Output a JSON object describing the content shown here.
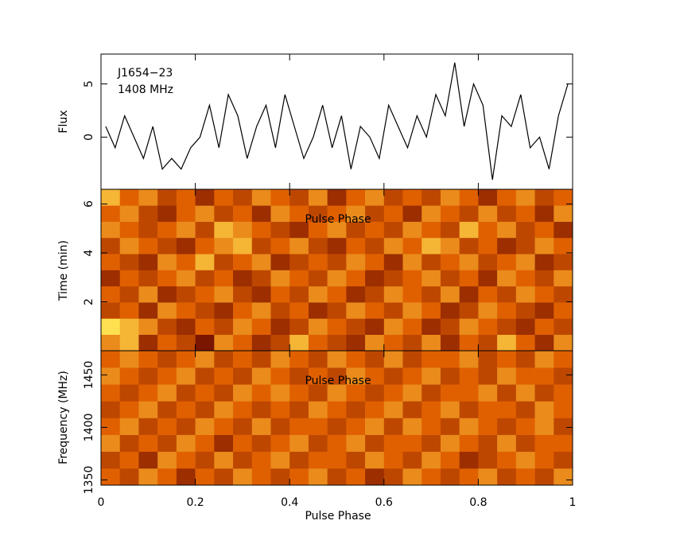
{
  "chart_data": [
    {
      "type": "line",
      "ylabel": "Flux",
      "annotations": [
        "J1654−23",
        "1408 MHz"
      ],
      "xlim": [
        0,
        1
      ],
      "ylim": [
        -4.9,
        7.8
      ],
      "yticks": [
        0,
        5
      ],
      "color": "#000000",
      "x": [
        0.01,
        0.03,
        0.05,
        0.07,
        0.09,
        0.11,
        0.13,
        0.15,
        0.17,
        0.19,
        0.21,
        0.23,
        0.25,
        0.27,
        0.29,
        0.31,
        0.33,
        0.35,
        0.37,
        0.39,
        0.41,
        0.43,
        0.45,
        0.47,
        0.49,
        0.51,
        0.53,
        0.55,
        0.57,
        0.59,
        0.61,
        0.63,
        0.65,
        0.67,
        0.69,
        0.71,
        0.73,
        0.75,
        0.77,
        0.79,
        0.81,
        0.83,
        0.85,
        0.87,
        0.89,
        0.91,
        0.93,
        0.95,
        0.97,
        0.99
      ],
      "values": [
        1,
        -1,
        2,
        0,
        -2,
        1,
        -3,
        -2,
        -3,
        -1,
        0,
        3,
        -1,
        4,
        2,
        -2,
        1,
        3,
        -1,
        4,
        1,
        -2,
        0,
        3,
        -1,
        2,
        -3,
        1,
        0,
        -2,
        3,
        1,
        -1,
        2,
        0,
        4,
        2,
        7,
        1,
        5,
        3,
        -4,
        2,
        1,
        4,
        -1,
        0,
        -3,
        2,
        5
      ]
    },
    {
      "type": "heatmap",
      "ylabel": "Time (min)",
      "annotation": "Pulse Phase",
      "xlim": [
        0,
        1
      ],
      "ylim": [
        0,
        6.6
      ],
      "yticks": [
        2,
        4,
        6
      ],
      "zlim": [
        2,
        8
      ],
      "colormap": [
        "#7a1500",
        "#e06000",
        "#ffe050"
      ],
      "values": [
        [
          6,
          7,
          3,
          5,
          4,
          2,
          6,
          5,
          3,
          4,
          7,
          5,
          4,
          3,
          6,
          5,
          4,
          6,
          3,
          5,
          4,
          7,
          5,
          3,
          6
        ],
        [
          8,
          7,
          6,
          4,
          3,
          5,
          4,
          6,
          5,
          3,
          4,
          6,
          5,
          4,
          3,
          6,
          5,
          3,
          4,
          6,
          5,
          4,
          3,
          5,
          4
        ],
        [
          4,
          5,
          3,
          6,
          5,
          4,
          3,
          5,
          6,
          4,
          5,
          3,
          4,
          6,
          5,
          4,
          6,
          5,
          3,
          4,
          6,
          5,
          4,
          3,
          5
        ],
        [
          5,
          4,
          6,
          3,
          4,
          5,
          6,
          4,
          3,
          5,
          4,
          6,
          5,
          3,
          4,
          6,
          5,
          4,
          6,
          3,
          5,
          4,
          6,
          5,
          4
        ],
        [
          3,
          5,
          4,
          5,
          6,
          4,
          5,
          3,
          4,
          6,
          5,
          4,
          6,
          5,
          3,
          4,
          5,
          6,
          4,
          5,
          3,
          6,
          5,
          4,
          6
        ],
        [
          5,
          4,
          3,
          6,
          5,
          7,
          4,
          5,
          6,
          3,
          4,
          5,
          4,
          6,
          5,
          3,
          6,
          4,
          5,
          6,
          4,
          5,
          6,
          3,
          4
        ],
        [
          4,
          6,
          5,
          4,
          3,
          5,
          6,
          7,
          4,
          5,
          6,
          4,
          3,
          5,
          4,
          6,
          5,
          7,
          6,
          4,
          5,
          3,
          4,
          6,
          5
        ],
        [
          6,
          5,
          4,
          5,
          6,
          4,
          7,
          6,
          5,
          4,
          3,
          5,
          6,
          4,
          5,
          4,
          6,
          5,
          4,
          7,
          5,
          6,
          4,
          5,
          3
        ],
        [
          5,
          6,
          4,
          3,
          5,
          6,
          4,
          5,
          3,
          6,
          5,
          4,
          5,
          6,
          4,
          5,
          3,
          6,
          5,
          4,
          6,
          4,
          5,
          3,
          6
        ],
        [
          7,
          5,
          6,
          4,
          5,
          3,
          5,
          4,
          6,
          5,
          4,
          6,
          3,
          5,
          6,
          4,
          5,
          4,
          6,
          5,
          3,
          5,
          6,
          4,
          5
        ]
      ]
    },
    {
      "type": "heatmap",
      "ylabel": "Frequency (MHz)",
      "annotation": "Pulse Phase",
      "xlabel": "Pulse Phase",
      "xlim": [
        0,
        1
      ],
      "xticks": [
        0,
        0.2,
        0.4,
        0.6,
        0.8,
        1
      ],
      "ylim": [
        1345,
        1473
      ],
      "yticks": [
        1350,
        1400,
        1450
      ],
      "zlim": [
        2,
        8
      ],
      "colormap": [
        "#7a1500",
        "#e06000",
        "#ffe050"
      ],
      "values": [
        [
          5,
          4,
          6,
          5,
          3,
          5,
          4,
          6,
          5,
          4,
          5,
          6,
          4,
          5,
          3,
          4,
          6,
          5,
          4,
          5,
          6,
          4,
          5,
          4,
          6
        ],
        [
          4,
          5,
          3,
          6,
          5,
          4,
          6,
          4,
          5,
          6,
          4,
          5,
          5,
          4,
          6,
          5,
          4,
          6,
          5,
          3,
          4,
          5,
          6,
          5,
          4
        ],
        [
          6,
          4,
          5,
          4,
          6,
          5,
          3,
          5,
          4,
          5,
          6,
          4,
          5,
          6,
          4,
          5,
          5,
          4,
          6,
          5,
          4,
          6,
          4,
          5,
          5
        ],
        [
          5,
          6,
          4,
          5,
          4,
          6,
          5,
          4,
          6,
          4,
          5,
          5,
          4,
          5,
          6,
          4,
          6,
          5,
          4,
          6,
          5,
          4,
          5,
          6,
          4
        ],
        [
          4,
          5,
          6,
          4,
          5,
          4,
          6,
          5,
          4,
          5,
          4,
          6,
          5,
          4,
          5,
          6,
          4,
          5,
          6,
          4,
          5,
          5,
          4,
          6,
          5
        ],
        [
          5,
          4,
          5,
          6,
          4,
          5,
          4,
          6,
          5,
          6,
          5,
          4,
          6,
          5,
          4,
          5,
          6,
          4,
          5,
          5,
          6,
          4,
          6,
          4,
          5
        ],
        [
          6,
          5,
          4,
          5,
          6,
          4,
          5,
          4,
          6,
          5,
          4,
          5,
          4,
          6,
          5,
          4,
          5,
          6,
          4,
          5,
          4,
          6,
          5,
          5,
          4
        ],
        [
          5,
          6,
          5,
          4,
          5,
          6,
          4,
          5,
          4,
          6,
          5,
          4,
          6,
          5,
          4,
          6,
          4,
          5,
          5,
          6,
          4,
          5,
          4,
          6,
          5
        ]
      ]
    }
  ]
}
